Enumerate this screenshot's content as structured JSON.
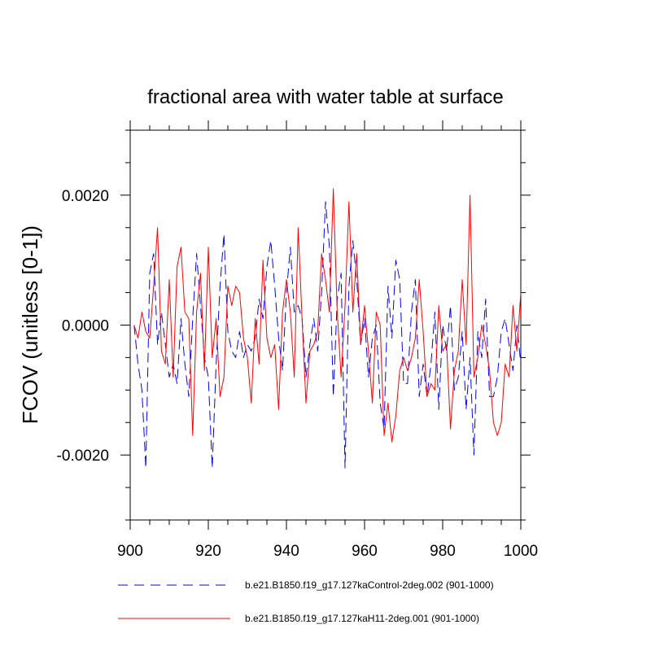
{
  "chart_data": {
    "type": "line",
    "title": "fractional area with water table at surface",
    "xlabel": "",
    "ylabel": "FCOV  (unitless [0-1])",
    "xlim": [
      900,
      1000
    ],
    "ylim": [
      -0.003,
      0.003
    ],
    "xticks": [
      900,
      920,
      940,
      960,
      980,
      1000
    ],
    "xtick_labels": [
      "900",
      "920",
      "940",
      "960",
      "980",
      "1000"
    ],
    "yticks": [
      -0.002,
      0.0,
      0.002
    ],
    "ytick_labels": [
      "-0.0020",
      "0.0000",
      "0.0020"
    ],
    "x": [
      901,
      902,
      903,
      904,
      905,
      906,
      907,
      908,
      909,
      910,
      911,
      912,
      913,
      914,
      915,
      916,
      917,
      918,
      919,
      920,
      921,
      922,
      923,
      924,
      925,
      926,
      927,
      928,
      929,
      930,
      931,
      932,
      933,
      934,
      935,
      936,
      937,
      938,
      939,
      940,
      941,
      942,
      943,
      944,
      945,
      946,
      947,
      948,
      949,
      950,
      951,
      952,
      953,
      954,
      955,
      956,
      957,
      958,
      959,
      960,
      961,
      962,
      963,
      964,
      965,
      966,
      967,
      968,
      969,
      970,
      971,
      972,
      973,
      974,
      975,
      976,
      977,
      978,
      979,
      980,
      981,
      982,
      983,
      984,
      985,
      986,
      987,
      988,
      989,
      990,
      991,
      992,
      993,
      994,
      995,
      996,
      997,
      998,
      999,
      1000
    ],
    "series": [
      {
        "name": "b.e21.B1850.f19_g17.127kaControl-2deg.002 (901-1000)",
        "color": "#0000ff",
        "style": "dashed",
        "values": [
          0.0,
          -0.0006,
          -0.001,
          -0.0022,
          0.0008,
          0.0011,
          -0.0003,
          0.0002,
          -0.0003,
          -0.0008,
          -0.0006,
          -0.0009,
          0.0001,
          -0.0006,
          -0.0011,
          0.0001,
          0.0011,
          0.0003,
          -0.0005,
          -0.0008,
          -0.0022,
          -0.0006,
          0.0006,
          0.0014,
          -0.0001,
          -0.0004,
          -0.0005,
          -0.0001,
          -0.0005,
          -0.0003,
          -0.0004,
          -0.0002,
          0.0004,
          0.0001,
          0.0009,
          0.0013,
          0.0006,
          -0.0002,
          -0.0007,
          0.0005,
          0.0012,
          0.0002,
          0.0003,
          0.0001,
          -0.0008,
          -0.0003,
          0.0001,
          -0.0004,
          0.0005,
          0.0019,
          0.0012,
          -0.0011,
          0.0004,
          0.0008,
          -0.0022,
          0.0006,
          0.0013,
          0.0007,
          -0.0003,
          0.0001,
          -0.0008,
          -0.0002,
          0.0,
          -0.0012,
          -0.0016,
          0.0006,
          -0.0002,
          0.001,
          0.0007,
          -0.0009,
          -0.0009,
          0.0002,
          0.0007,
          -0.0011,
          -0.0006,
          -0.0011,
          -0.0006,
          0.0002,
          -0.0013,
          0.0,
          -0.0004,
          0.0003,
          -0.001,
          -0.0008,
          -0.0001,
          -0.0013,
          -0.0005,
          -0.002,
          -0.0001,
          -0.0005,
          0.0004,
          -0.0011,
          -0.0011,
          -0.0008,
          -0.0001,
          0.0001,
          -0.0003,
          -0.0007,
          0.0,
          -0.0006
        ]
      },
      {
        "name": "b.e21.B1850.f19_g17.127kaH11-2deg.001 (901-1000)",
        "color": "#ff0000",
        "style": "solid",
        "values": [
          0.0,
          -0.0002,
          0.0002,
          -0.0001,
          -0.0002,
          0.0006,
          0.0015,
          -0.0004,
          -0.0006,
          0.0007,
          -0.0008,
          0.0009,
          0.0012,
          0.0002,
          0.0001,
          -0.0017,
          0.0002,
          0.0008,
          -0.0007,
          0.0012,
          -0.0005,
          0.0001,
          -0.0011,
          -0.0008,
          0.0006,
          0.0003,
          0.0006,
          0.0005,
          -0.0002,
          -0.0005,
          -0.0012,
          0.0001,
          -0.0006,
          0.001,
          -0.0002,
          -0.0005,
          -0.0003,
          -0.0013,
          0.0002,
          0.0007,
          0.0002,
          -0.0008,
          0.0015,
          0.0001,
          -0.0012,
          -0.0004,
          -0.0003,
          -0.0001,
          0.0011,
          0.0007,
          0.0002,
          0.0021,
          0.0002,
          -0.0008,
          0.0003,
          0.0019,
          0.0002,
          0.0011,
          -0.0003,
          0.0003,
          -0.0004,
          -0.0012,
          0.0002,
          0.0,
          -0.0017,
          -0.0012,
          -0.0018,
          -0.0014,
          -0.0007,
          -0.0005,
          -0.0007,
          -0.0005,
          -0.0002,
          0.0007,
          -0.0001,
          -0.0011,
          -0.0009,
          -0.001,
          0.0003,
          -0.0004,
          -0.0003,
          -0.0016,
          -0.0007,
          -0.0004,
          0.0007,
          -0.0003,
          0.002,
          -0.0008,
          -0.0005,
          0.0,
          -0.0003,
          -0.0007,
          -0.0015,
          -0.0017,
          -0.0015,
          -0.0006,
          -0.0008,
          0.0003,
          -0.0004,
          0.0005
        ]
      }
    ],
    "legend_position": "bottom"
  }
}
